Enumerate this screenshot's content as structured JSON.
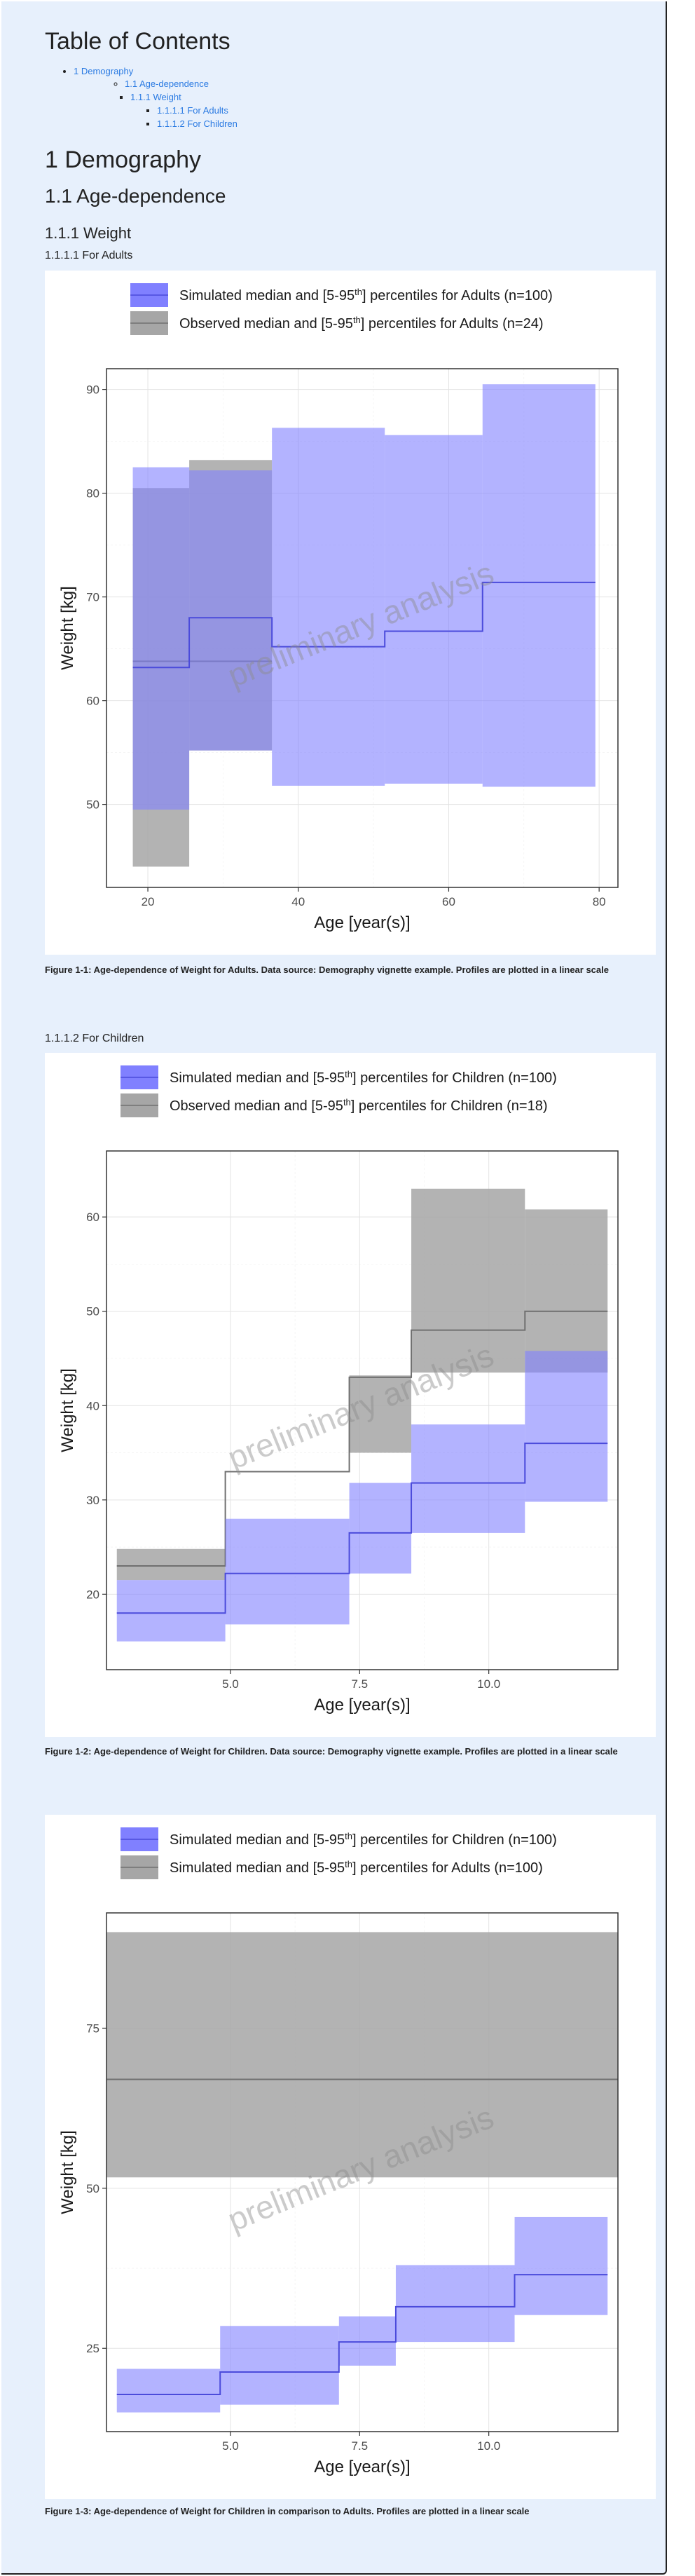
{
  "toc": {
    "title": "Table of Contents",
    "items": [
      {
        "label": "1 Demography",
        "level": 1
      },
      {
        "label": "1.1 Age-dependence",
        "level": 2
      },
      {
        "label": "1.1.1 Weight",
        "level": 3
      },
      {
        "label": "1.1.1.1 For Adults",
        "level": 4
      },
      {
        "label": "1.1.1.2 For Children",
        "level": 4
      }
    ]
  },
  "headings": {
    "h1": "1 Demography",
    "h2": "1.1 Age-dependence",
    "h3": "1.1.1 Weight",
    "h4_adults": "1.1.1.1 For Adults",
    "h4_children": "1.1.1.2 For Children"
  },
  "watermark": "preliminary analysis",
  "colors": {
    "page_bg": "#e7f0fc",
    "link": "#2a7ae2",
    "sim_fill": "#8080ff",
    "sim_line": "#4b4bdb",
    "obs_fill": "#a6a6a6",
    "obs_line": "#707070"
  },
  "chart_data": [
    {
      "type": "area",
      "caption": "Figure 1-1: Age-dependence of Weight for Adults. Data source: Demography vignette example. Profiles are plotted in a linear scale",
      "xlabel": "Age [year(s)]",
      "ylabel": "Weight [kg]",
      "xlim": [
        14.5,
        82.5
      ],
      "ylim": [
        42,
        92
      ],
      "xticks": [
        20,
        40,
        60,
        80
      ],
      "yticks": [
        50,
        60,
        70,
        80,
        90
      ],
      "grid": true,
      "legend_position": "top",
      "legend": [
        {
          "label": "Simulated median and [5-95th] percentiles for Adults (n=100)",
          "style": "sim"
        },
        {
          "label": "Observed median and [5-95th] percentiles for Adults (n=24)",
          "style": "obs"
        }
      ],
      "series": [
        {
          "style": "obs",
          "bins": [
            {
              "x0": 18,
              "x1": 25.5,
              "low": 44,
              "median": 63.8,
              "high": 80.5
            },
            {
              "x0": 25.5,
              "x1": 36.5,
              "low": 55.2,
              "median": 63.8,
              "high": 83.2
            }
          ]
        },
        {
          "style": "sim",
          "bins": [
            {
              "x0": 18,
              "x1": 25.5,
              "low": 49.5,
              "median": 63.2,
              "high": 82.5
            },
            {
              "x0": 25.5,
              "x1": 36.5,
              "low": 55.2,
              "median": 68,
              "high": 82.2
            },
            {
              "x0": 36.5,
              "x1": 51.5,
              "low": 51.8,
              "median": 65.2,
              "high": 86.3
            },
            {
              "x0": 51.5,
              "x1": 64.5,
              "low": 52,
              "median": 66.7,
              "high": 85.6
            },
            {
              "x0": 64.5,
              "x1": 79.5,
              "low": 51.7,
              "median": 71.4,
              "high": 90.5
            }
          ]
        }
      ]
    },
    {
      "type": "area",
      "caption": "Figure 1-2: Age-dependence of Weight for Children. Data source: Demography vignette example. Profiles are plotted in a linear scale",
      "xlabel": "Age [year(s)]",
      "ylabel": "Weight [kg]",
      "xlim": [
        2.6,
        12.5
      ],
      "ylim": [
        12,
        67
      ],
      "xticks": [
        5.0,
        7.5,
        10.0
      ],
      "xtick_labels": [
        "5.0",
        "7.5",
        "10.0"
      ],
      "yticks": [
        20,
        30,
        40,
        50,
        60
      ],
      "grid": true,
      "legend_position": "top",
      "legend": [
        {
          "label": "Simulated median and [5-95th] percentiles for Children (n=100)",
          "style": "sim"
        },
        {
          "label": "Observed median and [5-95th] percentiles for Children (n=18)",
          "style": "obs"
        }
      ],
      "series": [
        {
          "style": "obs",
          "bins": [
            {
              "x0": 2.8,
              "x1": 4.9,
              "low": 21.5,
              "median": 23,
              "high": 24.8
            },
            {
              "x0": 4.9,
              "x1": 7.3,
              "low": 33,
              "median": 33,
              "high": 33
            },
            {
              "x0": 7.3,
              "x1": 8.5,
              "low": 35,
              "median": 43,
              "high": 43.2
            },
            {
              "x0": 8.5,
              "x1": 10.7,
              "low": 43.5,
              "median": 48,
              "high": 63
            },
            {
              "x0": 10.7,
              "x1": 12.3,
              "low": 43.5,
              "median": 50,
              "high": 60.8
            }
          ]
        },
        {
          "style": "sim",
          "bins": [
            {
              "x0": 2.8,
              "x1": 4.9,
              "low": 15,
              "median": 18,
              "high": 21.5
            },
            {
              "x0": 4.9,
              "x1": 7.3,
              "low": 16.8,
              "median": 22.2,
              "high": 28
            },
            {
              "x0": 7.3,
              "x1": 8.5,
              "low": 22.2,
              "median": 26.5,
              "high": 31.8
            },
            {
              "x0": 8.5,
              "x1": 10.7,
              "low": 26.5,
              "median": 31.8,
              "high": 38
            },
            {
              "x0": 10.7,
              "x1": 12.3,
              "low": 29.8,
              "median": 36,
              "high": 45.8
            }
          ]
        }
      ]
    },
    {
      "type": "area",
      "caption": "Figure 1-3: Age-dependence of Weight for Children in comparison to Adults. Profiles are plotted in a linear scale",
      "xlabel": "Age [year(s)]",
      "ylabel": "Weight [kg]",
      "xlim": [
        2.6,
        12.5
      ],
      "ylim": [
        12,
        93
      ],
      "xticks": [
        5.0,
        7.5,
        10.0
      ],
      "xtick_labels": [
        "5.0",
        "7.5",
        "10.0"
      ],
      "yticks": [
        25,
        50,
        75
      ],
      "grid": true,
      "legend_position": "top",
      "legend": [
        {
          "label": "Simulated median and [5-95th] percentiles for Children (n=100)",
          "style": "sim"
        },
        {
          "label": "Simulated median and [5-95th] percentiles for Adults (n=100)",
          "style": "obs"
        }
      ],
      "series": [
        {
          "style": "obs",
          "bins": [
            {
              "x0": 2.6,
              "x1": 12.5,
              "low": 51.7,
              "median": 67,
              "high": 90
            }
          ]
        },
        {
          "style": "sim",
          "bins": [
            {
              "x0": 2.8,
              "x1": 4.8,
              "low": 15,
              "median": 17.8,
              "high": 21.8
            },
            {
              "x0": 4.8,
              "x1": 7.1,
              "low": 16.2,
              "median": 21.3,
              "high": 28.5
            },
            {
              "x0": 7.1,
              "x1": 8.2,
              "low": 22.3,
              "median": 26,
              "high": 30
            },
            {
              "x0": 8.2,
              "x1": 10.5,
              "low": 26,
              "median": 31.5,
              "high": 38
            },
            {
              "x0": 10.5,
              "x1": 12.3,
              "low": 30.2,
              "median": 36.5,
              "high": 45.5
            }
          ]
        }
      ]
    }
  ]
}
